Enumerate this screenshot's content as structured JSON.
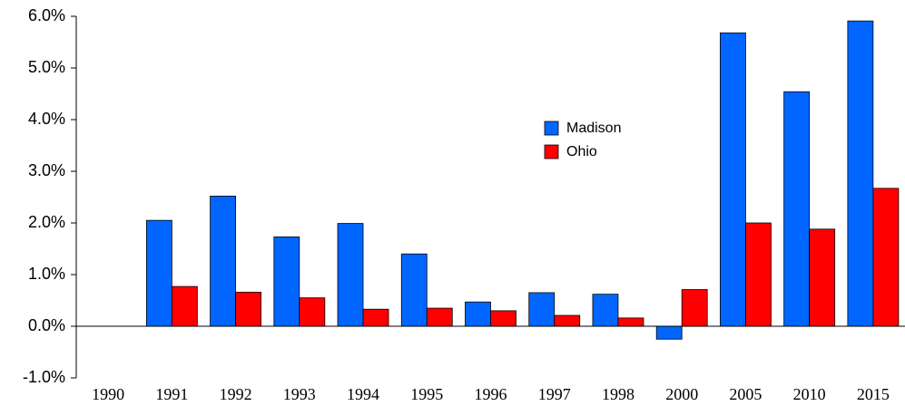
{
  "chart_data": {
    "type": "bar",
    "categories": [
      "1990",
      "1991",
      "1992",
      "1993",
      "1994",
      "1995",
      "1996",
      "1997",
      "1998",
      "2000",
      "2005",
      "2010",
      "2015"
    ],
    "series": [
      {
        "name": "Madison",
        "color": "#0066ff",
        "values": [
          null,
          2.05,
          2.52,
          1.73,
          1.99,
          1.4,
          0.47,
          0.65,
          0.62,
          -0.25,
          5.68,
          4.54,
          5.91
        ]
      },
      {
        "name": "Ohio",
        "color": "#ff0000",
        "values": [
          null,
          0.77,
          0.66,
          0.55,
          0.33,
          0.35,
          0.3,
          0.21,
          0.16,
          0.71,
          2.0,
          1.88,
          2.67
        ]
      }
    ],
    "ylim": [
      -1,
      6
    ],
    "yticks": [
      {
        "value": -1,
        "label": "-1.0%"
      },
      {
        "value": 0,
        "label": "0.0%"
      },
      {
        "value": 1,
        "label": "1.0%"
      },
      {
        "value": 2,
        "label": "2.0%"
      },
      {
        "value": 3,
        "label": "3.0%"
      },
      {
        "value": 4,
        "label": "4.0%"
      },
      {
        "value": 5,
        "label": "5.0%"
      },
      {
        "value": 6,
        "label": "6.0%"
      }
    ],
    "grid": false
  }
}
